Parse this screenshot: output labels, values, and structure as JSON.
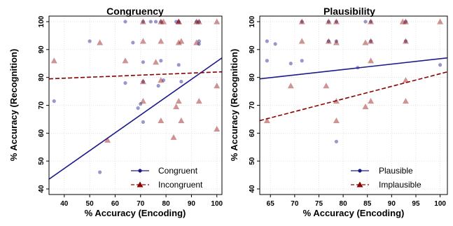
{
  "chart_data": [
    {
      "type": "scatter",
      "title": "Congruency",
      "xlabel": "% Accuracy (Encoding)",
      "ylabel": "% Accuracy (Recognition)",
      "xlim": [
        34,
        102
      ],
      "ylim": [
        38,
        102
      ],
      "xticks": [
        40,
        50,
        60,
        70,
        80,
        90,
        100
      ],
      "yticks": [
        40,
        50,
        60,
        70,
        80,
        90,
        100
      ],
      "grid": true,
      "legend_position": "bottom-right",
      "series": [
        {
          "name": "Congruent",
          "marker": "circle",
          "color": "#1a1a8c",
          "x": [
            36,
            50,
            54,
            64,
            64,
            67,
            69,
            70,
            71,
            71,
            71,
            71,
            74,
            76,
            77,
            78,
            78,
            79,
            84,
            85,
            85,
            86,
            92,
            93,
            93,
            93
          ],
          "y": [
            71.5,
            93,
            46,
            100,
            78,
            92.5,
            69,
            70.5,
            85.5,
            64,
            100,
            78.5,
            100,
            100,
            77,
            100,
            86,
            79,
            100,
            84.5,
            100,
            78.5,
            100,
            93,
            92,
            100
          ],
          "fit": {
            "x": [
              34,
              102
            ],
            "y": [
              43.5,
              87
            ]
          }
        },
        {
          "name": "Incongruent",
          "marker": "triangle",
          "color": "#8b0000",
          "x": [
            36,
            54,
            57,
            64,
            71,
            71,
            71,
            71,
            76,
            78,
            78,
            78,
            78,
            79,
            83,
            84,
            85,
            85,
            85,
            85,
            86,
            86,
            92,
            92,
            93,
            93,
            100,
            100,
            100
          ],
          "y": [
            86,
            92.5,
            57.5,
            86,
            100,
            93,
            71.5,
            78.5,
            85.5,
            100,
            93,
            79,
            64.5,
            100,
            58.5,
            69.5,
            100,
            92.5,
            71.5,
            100,
            93,
            64.5,
            100,
            92.5,
            71.5,
            100,
            100,
            77,
            61.5
          ],
          "fit": {
            "x": [
              34,
              102
            ],
            "y": [
              79.5,
              82
            ]
          }
        }
      ]
    },
    {
      "type": "scatter",
      "title": "Plausibility",
      "xlabel": "% Accuracy (Encoding)",
      "ylabel": "% Accuracy (Recognition)",
      "xlim": [
        62.8,
        101.5
      ],
      "ylim": [
        38,
        102
      ],
      "xticks": [
        65,
        70,
        75,
        80,
        85,
        90,
        95,
        100
      ],
      "yticks": [
        40,
        50,
        60,
        70,
        80,
        90,
        100
      ],
      "grid": true,
      "legend_position": "bottom-right",
      "series": [
        {
          "name": "Plausible",
          "marker": "circle",
          "color": "#1a1a8c",
          "x": [
            64.3,
            64.3,
            66,
            69.2,
            71.5,
            71.5,
            77,
            77,
            78.6,
            78.6,
            78.6,
            83,
            84.6,
            85.7,
            85.7,
            92.9,
            92.9,
            100
          ],
          "y": [
            93,
            86,
            92,
            85,
            86,
            100,
            93,
            100,
            100,
            93,
            57,
            83.5,
            100,
            100,
            93,
            100,
            93,
            84.5
          ],
          "fit": {
            "x": [
              62.8,
              101.5
            ],
            "y": [
              79.5,
              87
            ]
          }
        },
        {
          "name": "Implausible",
          "marker": "triangle",
          "color": "#8b0000",
          "x": [
            64.3,
            69.2,
            71.5,
            71.5,
            76.5,
            77,
            77,
            78.6,
            78.6,
            78.6,
            78.6,
            84.6,
            84.6,
            85.7,
            85.7,
            85.7,
            85.7,
            92.3,
            92.9,
            92.9,
            92.9,
            92.9,
            100
          ],
          "y": [
            64.5,
            77,
            93,
            100,
            77,
            93,
            100,
            100,
            92.5,
            71.5,
            64.5,
            92.5,
            69.5,
            86,
            71.5,
            100,
            93,
            100,
            93,
            79,
            71.5,
            100,
            100
          ],
          "fit": {
            "x": [
              62.8,
              101.5
            ],
            "y": [
              64.5,
              82
            ]
          }
        }
      ]
    }
  ]
}
